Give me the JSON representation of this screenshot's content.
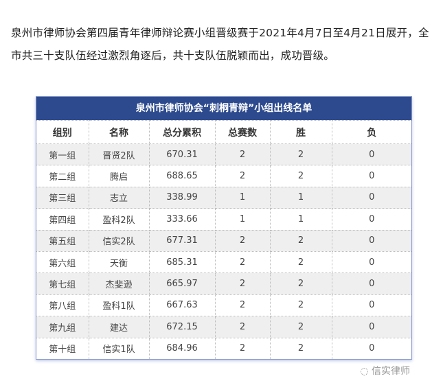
{
  "intro": "泉州市律师协会第四届青年律师辩论赛小组晋级赛于2021年4月7日至4月21日展开，全市共三十支队伍经过激烈角逐后，共十支队伍脱颖而出，成功晋级。",
  "table": {
    "title": "泉州市律师协会“刺桐青辩”小组出线名单",
    "headers": [
      "组别",
      "名称",
      "总分累积",
      "总赛数",
      "胜",
      "负"
    ],
    "rows": [
      [
        "第一组",
        "晋贤2队",
        "670.31",
        "2",
        "2",
        "0"
      ],
      [
        "第二组",
        "腾启",
        "688.65",
        "2",
        "2",
        "0"
      ],
      [
        "第三组",
        "志立",
        "338.99",
        "1",
        "1",
        "0"
      ],
      [
        "第四组",
        "盈科2队",
        "333.66",
        "1",
        "1",
        "0"
      ],
      [
        "第五组",
        "信实2队",
        "677.31",
        "2",
        "2",
        "0"
      ],
      [
        "第六组",
        "天衡",
        "685.31",
        "2",
        "2",
        "0"
      ],
      [
        "第七组",
        "杰斐逊",
        "665.97",
        "2",
        "2",
        "0"
      ],
      [
        "第八组",
        "盈科1队",
        "667.63",
        "2",
        "2",
        "0"
      ],
      [
        "第九组",
        "建达",
        "672.15",
        "2",
        "2",
        "0"
      ],
      [
        "第十组",
        "信实1队",
        "684.96",
        "2",
        "2",
        "0"
      ]
    ],
    "header_color": "#2d4a8e"
  },
  "watermark": "信实律师"
}
